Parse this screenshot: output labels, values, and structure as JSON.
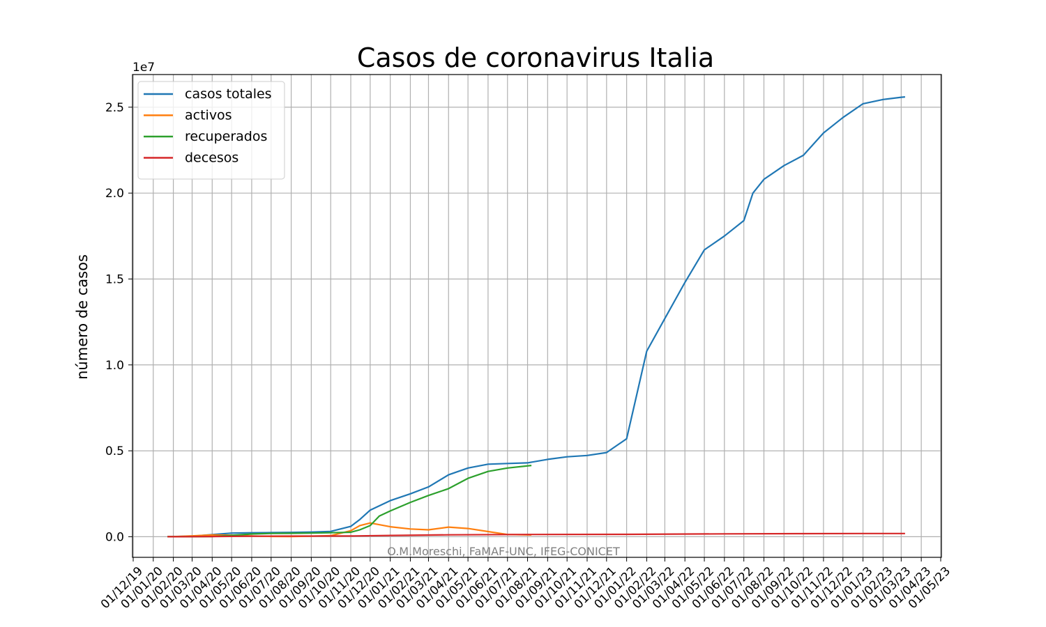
{
  "chart_data": {
    "type": "line",
    "title": "Casos de coronavirus Italia",
    "y_label": "número de casos",
    "y_offset_label": "1e7",
    "annotation": "O.M.Moreschi, FaMAF-UNC, IFEG-CONICET",
    "grid": true,
    "legend": "upper left",
    "xlim": [
      "01/12/19",
      "01/05/23"
    ],
    "xticks": [
      "01/12/19",
      "01/01/20",
      "01/02/20",
      "01/03/20",
      "01/04/20",
      "01/05/20",
      "01/06/20",
      "01/07/20",
      "01/08/20",
      "01/09/20",
      "01/10/20",
      "01/11/20",
      "01/12/20",
      "01/01/21",
      "01/02/21",
      "01/03/21",
      "01/04/21",
      "01/05/21",
      "01/06/21",
      "01/07/21",
      "01/08/21",
      "01/09/21",
      "01/10/21",
      "01/11/21",
      "01/12/21",
      "01/01/22",
      "01/02/22",
      "01/03/22",
      "01/04/22",
      "01/05/22",
      "01/06/22",
      "01/07/22",
      "01/08/22",
      "01/09/22",
      "01/10/22",
      "01/11/22",
      "01/12/22",
      "01/01/23",
      "01/02/23",
      "01/03/23",
      "01/04/23",
      "01/05/23"
    ],
    "ylim": [
      -0.12,
      2.69
    ],
    "yticks": [
      {
        "value": 0,
        "label": "0.0"
      },
      0.5,
      {
        "value": 1,
        "label": "1.0"
      },
      1.5,
      {
        "value": 2,
        "label": "2.0"
      },
      2.5
    ],
    "series": [
      {
        "name": "casos totales",
        "color": "#1f77b4",
        "x": [
          "23/01/20",
          "01/02/20",
          "01/03/20",
          "01/04/20",
          "01/05/20",
          "01/06/20",
          "01/07/20",
          "01/08/20",
          "01/09/20",
          "01/10/20",
          "01/11/20",
          "15/11/20",
          "01/12/20",
          "01/01/21",
          "01/02/21",
          "01/03/21",
          "01/04/21",
          "01/05/21",
          "01/06/21",
          "01/07/21",
          "01/08/21",
          "01/09/21",
          "01/10/21",
          "01/11/21",
          "01/12/21",
          "01/01/22",
          "15/01/22",
          "01/02/22",
          "01/03/22",
          "01/04/22",
          "01/05/22",
          "01/06/22",
          "01/07/22",
          "15/07/22",
          "01/08/22",
          "01/09/22",
          "01/10/22",
          "01/11/22",
          "01/12/22",
          "01/01/23",
          "01/02/23",
          "01/03/23",
          "07/03/23"
        ],
        "values": [
          0,
          0.001,
          0.003,
          0.012,
          0.021,
          0.023,
          0.024,
          0.025,
          0.027,
          0.031,
          0.06,
          0.1,
          0.155,
          0.21,
          0.25,
          0.29,
          0.36,
          0.4,
          0.422,
          0.426,
          0.43,
          0.45,
          0.465,
          0.473,
          0.49,
          0.57,
          0.8,
          1.08,
          1.27,
          1.48,
          1.67,
          1.75,
          1.84,
          2.0,
          2.08,
          2.16,
          2.22,
          2.35,
          2.44,
          2.52,
          2.545,
          2.558,
          2.56
        ]
      },
      {
        "name": "activos",
        "color": "#ff7f0e",
        "x": [
          "23/01/20",
          "01/02/20",
          "01/03/20",
          "01/04/20",
          "01/05/20",
          "01/06/20",
          "01/07/20",
          "01/08/20",
          "01/09/20",
          "01/10/20",
          "01/11/20",
          "15/11/20",
          "01/12/20",
          "01/01/21",
          "01/02/21",
          "01/03/21",
          "01/04/21",
          "01/05/21",
          "01/06/21",
          "01/07/21",
          "07/08/21"
        ],
        "values": [
          0,
          0.0005,
          0.005,
          0.01,
          0.009,
          0.004,
          0.0015,
          0.001,
          0.003,
          0.006,
          0.035,
          0.065,
          0.08,
          0.058,
          0.045,
          0.04,
          0.056,
          0.048,
          0.03,
          0.013,
          0.01
        ]
      },
      {
        "name": "recuperados",
        "color": "#2ca02c",
        "x": [
          "23/01/20",
          "01/02/20",
          "01/03/20",
          "01/04/20",
          "01/05/20",
          "01/06/20",
          "01/07/20",
          "01/08/20",
          "01/09/20",
          "01/10/20",
          "01/11/20",
          "15/11/20",
          "01/12/20",
          "15/12/20",
          "01/01/21",
          "01/02/21",
          "01/03/21",
          "01/04/21",
          "01/05/21",
          "01/06/21",
          "01/07/21",
          "07/08/21"
        ],
        "values": [
          0,
          0,
          0,
          0.001,
          0.008,
          0.016,
          0.019,
          0.02,
          0.021,
          0.023,
          0.026,
          0.04,
          0.065,
          0.12,
          0.15,
          0.2,
          0.24,
          0.28,
          0.34,
          0.38,
          0.4,
          0.415
        ]
      },
      {
        "name": "decesos",
        "color": "#d62728",
        "x": [
          "23/01/20",
          "01/02/20",
          "01/04/20",
          "01/06/20",
          "01/11/20",
          "01/01/21",
          "01/04/21",
          "01/08/21",
          "01/01/22",
          "01/06/22",
          "01/10/22",
          "01/01/23",
          "07/03/23"
        ],
        "values": [
          0,
          0,
          0.0014,
          0.0034,
          0.004,
          0.0075,
          0.011,
          0.0128,
          0.0138,
          0.0167,
          0.0177,
          0.0185,
          0.0188
        ]
      }
    ]
  }
}
